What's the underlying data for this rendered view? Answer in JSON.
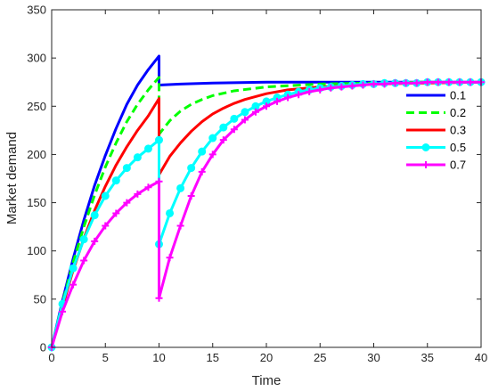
{
  "chart_data": {
    "type": "line",
    "title": "",
    "xlabel": "Time",
    "ylabel": "Market demand",
    "xlim": [
      0,
      40
    ],
    "ylim": [
      0,
      350
    ],
    "xticks": [
      0,
      5,
      10,
      15,
      20,
      25,
      30,
      35,
      40
    ],
    "yticks": [
      0,
      50,
      100,
      150,
      200,
      250,
      300,
      350
    ],
    "grid": false,
    "legend_position": "top-right",
    "series": [
      {
        "name": "0.1",
        "color": "#0000ff",
        "dash": "solid",
        "marker": "none",
        "x": [
          0,
          1,
          2,
          3,
          4,
          5,
          6,
          7,
          8,
          9,
          10,
          10,
          12,
          15,
          20,
          25,
          30,
          35,
          40
        ],
        "y": [
          0,
          48,
          92,
          132,
          168,
          199,
          227,
          252,
          272,
          288,
          302,
          272,
          273,
          274,
          275,
          275,
          275,
          275,
          275
        ]
      },
      {
        "name": "0.2",
        "color": "#00ff00",
        "dash": "dashed",
        "marker": "none",
        "x": [
          0,
          1,
          2,
          3,
          4,
          5,
          6,
          7,
          8,
          9,
          10,
          10,
          11,
          12,
          13,
          14,
          15,
          17,
          20,
          25,
          30,
          35,
          40
        ],
        "y": [
          0,
          46,
          88,
          125,
          158,
          187,
          212,
          234,
          252,
          267,
          280,
          221,
          235,
          245,
          252,
          257,
          261,
          266,
          270,
          273,
          274,
          275,
          275
        ]
      },
      {
        "name": "0.3",
        "color": "#ff0000",
        "dash": "solid",
        "marker": "none",
        "x": [
          0,
          1,
          2,
          3,
          4,
          5,
          6,
          7,
          8,
          9,
          10,
          10,
          11,
          12,
          13,
          14,
          15,
          16,
          17,
          18,
          20,
          22,
          25,
          30,
          35,
          40
        ],
        "y": [
          0,
          42,
          80,
          113,
          142,
          167,
          189,
          208,
          225,
          240,
          258,
          179,
          198,
          212,
          224,
          234,
          242,
          248,
          253,
          257,
          263,
          267,
          270,
          273,
          274,
          275
        ]
      },
      {
        "name": "0.5",
        "color": "#00ffff",
        "dash": "solid",
        "marker": "circle",
        "x": [
          0,
          1,
          2,
          3,
          4,
          5,
          6,
          7,
          8,
          9,
          10,
          10,
          11,
          12,
          13,
          14,
          15,
          16,
          17,
          18,
          19,
          20,
          21,
          22,
          23,
          24,
          25,
          26,
          27,
          28,
          29,
          30,
          31,
          32,
          33,
          34,
          35,
          36,
          37,
          38,
          39,
          40
        ],
        "y": [
          0,
          45,
          82,
          112,
          137,
          157,
          173,
          186,
          197,
          206,
          215,
          107,
          139,
          165,
          186,
          203,
          217,
          228,
          237,
          244,
          250,
          255,
          259,
          262,
          265,
          267,
          269,
          270,
          271,
          272,
          273,
          273,
          274,
          274,
          274,
          274,
          275,
          275,
          275,
          275,
          275,
          275
        ]
      },
      {
        "name": "0.7",
        "color": "#ff00ff",
        "dash": "solid",
        "marker": "plus",
        "x": [
          0,
          1,
          2,
          3,
          4,
          5,
          6,
          7,
          8,
          9,
          10,
          10,
          11,
          12,
          13,
          14,
          15,
          16,
          17,
          18,
          19,
          20,
          21,
          22,
          23,
          24,
          25,
          26,
          27,
          28,
          29,
          30,
          31,
          32,
          33,
          34,
          35,
          36,
          37,
          38,
          39,
          40
        ],
        "y": [
          0,
          37,
          65,
          90,
          110,
          126,
          139,
          150,
          159,
          166,
          172,
          51,
          93,
          126,
          157,
          182,
          200,
          215,
          226,
          236,
          244,
          250,
          255,
          259,
          262,
          265,
          267,
          269,
          270,
          271,
          272,
          273,
          273,
          274,
          274,
          274,
          275,
          275,
          275,
          275,
          275,
          275
        ]
      }
    ]
  }
}
